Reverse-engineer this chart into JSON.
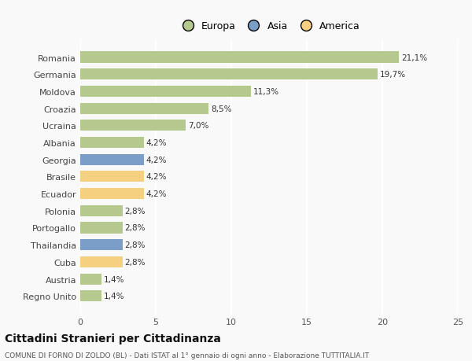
{
  "categories": [
    "Romania",
    "Germania",
    "Moldova",
    "Croazia",
    "Ucraina",
    "Albania",
    "Georgia",
    "Brasile",
    "Ecuador",
    "Polonia",
    "Portogallo",
    "Thailandia",
    "Cuba",
    "Austria",
    "Regno Unito"
  ],
  "values": [
    21.1,
    19.7,
    11.3,
    8.5,
    7.0,
    4.2,
    4.2,
    4.2,
    4.2,
    2.8,
    2.8,
    2.8,
    2.8,
    1.4,
    1.4
  ],
  "labels": [
    "21,1%",
    "19,7%",
    "11,3%",
    "8,5%",
    "7,0%",
    "4,2%",
    "4,2%",
    "4,2%",
    "4,2%",
    "2,8%",
    "2,8%",
    "2,8%",
    "2,8%",
    "1,4%",
    "1,4%"
  ],
  "colors": [
    "#b5c98e",
    "#b5c98e",
    "#b5c98e",
    "#b5c98e",
    "#b5c98e",
    "#b5c98e",
    "#7b9ec9",
    "#f5d080",
    "#f5d080",
    "#b5c98e",
    "#b5c98e",
    "#7b9ec9",
    "#f5d080",
    "#b5c98e",
    "#b5c98e"
  ],
  "legend": [
    {
      "label": "Europa",
      "color": "#b5c98e"
    },
    {
      "label": "Asia",
      "color": "#7b9ec9"
    },
    {
      "label": "America",
      "color": "#f5d080"
    }
  ],
  "xlim": [
    0,
    25
  ],
  "xticks": [
    0,
    5,
    10,
    15,
    20,
    25
  ],
  "title": "Cittadini Stranieri per Cittadinanza",
  "subtitle": "COMUNE DI FORNO DI ZOLDO (BL) - Dati ISTAT al 1° gennaio di ogni anno - Elaborazione TUTTITALIA.IT",
  "background_color": "#f9f9f9",
  "grid_color": "#ffffff"
}
